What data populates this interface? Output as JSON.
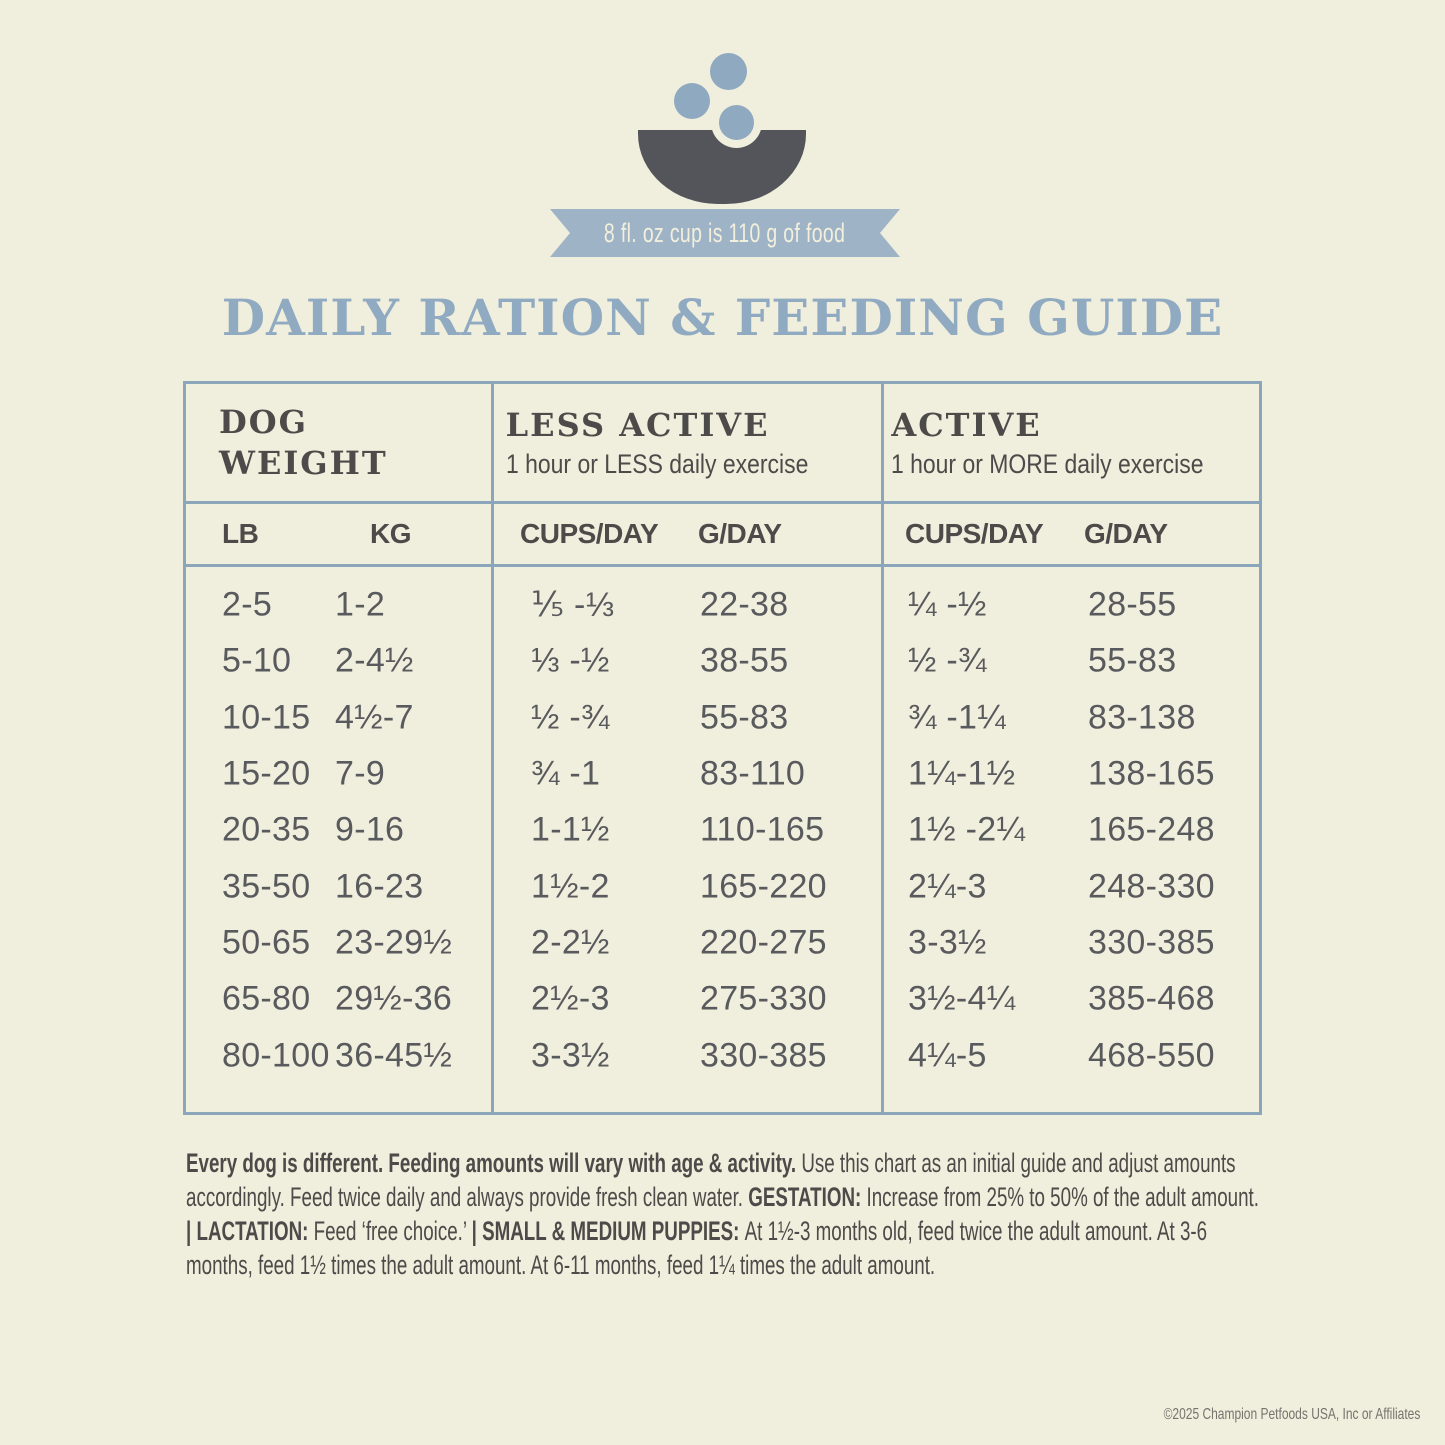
{
  "colors": {
    "background": "#f0eedc",
    "blue_accent": "#8ba6bb",
    "title_blue": "#90aac2",
    "ribbon_blue": "#9eb3c6",
    "bowl_dark": "#53555a",
    "header_text": "#4c4b49",
    "data_text": "#595a5d"
  },
  "banner": {
    "ribbon_text": "8 fl. oz cup is 110 g of food"
  },
  "title": "DAILY RATION & FEEDING GUIDE",
  "table": {
    "sections": {
      "dog_weight": {
        "line1": "DOG",
        "line2": "WEIGHT"
      },
      "less_active": {
        "label": "LESS ACTIVE",
        "sub": "1 hour or LESS daily exercise"
      },
      "active": {
        "label": "ACTIVE",
        "sub": "1 hour or MORE daily exercise"
      }
    },
    "columns": {
      "lb": "LB",
      "kg": "KG",
      "cups1": "CUPS/DAY",
      "g1": "G/DAY",
      "cups2": "CUPS/DAY",
      "g2": "G/DAY"
    },
    "rows": [
      [
        "2-5",
        "1-2",
        "⅕ -⅓",
        "22-38",
        "¼ -½",
        "28-55"
      ],
      [
        "5-10",
        "2-4½",
        "⅓ -½",
        "38-55",
        "½ -¾",
        "55-83"
      ],
      [
        "10-15",
        "4½-7",
        "½ -¾",
        "55-83",
        "¾ -1¼",
        "83-138"
      ],
      [
        "15-20",
        "7-9",
        "¾ -1",
        "83-110",
        "1¼-1½",
        "138-165"
      ],
      [
        "20-35",
        "9-16",
        "1-1½",
        "110-165",
        "1½ -2¼",
        "165-248"
      ],
      [
        "35-50",
        "16-23",
        "1½-2",
        "165-220",
        "2¼-3",
        "248-330"
      ],
      [
        "50-65",
        "23-29½",
        "2-2½",
        "220-275",
        "3-3½",
        "330-385"
      ],
      [
        "65-80",
        "29½-36",
        "2½-3",
        "275-330",
        "3½-4¼",
        "385-468"
      ],
      [
        "80-100",
        "36-45½",
        "3-3½",
        "330-385",
        "4¼-5",
        "468-550"
      ]
    ]
  },
  "footnote": {
    "segments": [
      {
        "bold": true,
        "text": "Every dog is different. Feeding amounts will vary with age & activity. "
      },
      {
        "bold": false,
        "text": "Use this chart as an initial guide and adjust amounts accordingly. Feed twice daily and always provide fresh clean water. "
      },
      {
        "bold": true,
        "text": "GESTATION: "
      },
      {
        "bold": false,
        "text": "Increase from 25% to 50% of the adult amount. "
      },
      {
        "bold": true,
        "text": "| LACTATION: "
      },
      {
        "bold": false,
        "text": "Feed ‘free choice.’ "
      },
      {
        "bold": true,
        "text": "| SMALL & MEDIUM PUPPIES: "
      },
      {
        "bold": false,
        "text": "At 1½-3 months old, feed twice the adult amount. At 3-6 months, feed 1½ times the adult amount. At 6-11 months, feed 1¼ times the adult amount."
      }
    ]
  },
  "copyright": "©2025 Champion Petfoods USA, Inc or Affiliates"
}
